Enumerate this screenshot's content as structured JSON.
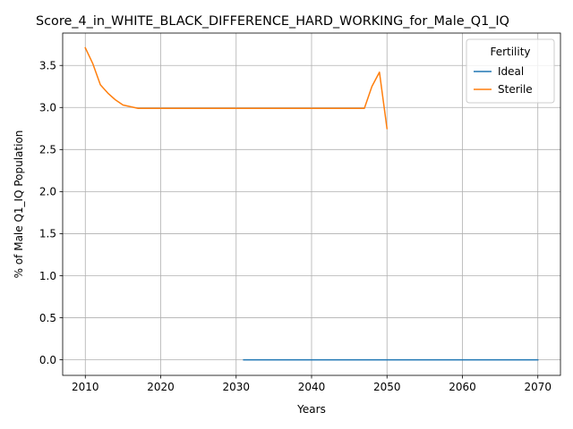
{
  "chart_data": {
    "type": "line",
    "title": "Score_4_in_WHITE_BLACK_DIFFERENCE_HARD_WORKING_for_Male_Q1_IQ",
    "xlabel": "Years",
    "ylabel": "% of Male Q1_IQ Population",
    "xlim": [
      2007,
      2073
    ],
    "ylim": [
      -0.185,
      3.885
    ],
    "xticks": [
      2010,
      2020,
      2030,
      2040,
      2050,
      2060,
      2070
    ],
    "yticks": [
      0.0,
      0.5,
      1.0,
      1.5,
      2.0,
      2.5,
      3.0,
      3.5
    ],
    "xtick_labels": [
      "2010",
      "2020",
      "2030",
      "2040",
      "2050",
      "2060",
      "2070"
    ],
    "ytick_labels": [
      "0.0",
      "0.5",
      "1.0",
      "1.5",
      "2.0",
      "2.5",
      "3.0",
      "3.5"
    ],
    "grid": true,
    "legend": {
      "title": "Fertility",
      "placement": "top-right"
    },
    "series": [
      {
        "name": "Ideal",
        "color": "#1f77b4",
        "x": [
          2031,
          2035,
          2040,
          2045,
          2050,
          2055,
          2060,
          2065,
          2070
        ],
        "y": [
          0.0,
          0.0,
          0.0,
          0.0,
          0.0,
          0.0,
          0.0,
          0.0,
          0.0
        ]
      },
      {
        "name": "Sterile",
        "color": "#ff7f0e",
        "x": [
          2010,
          2011,
          2012,
          2013,
          2014,
          2015,
          2016,
          2017,
          2018,
          2020,
          2025,
          2030,
          2035,
          2040,
          2045,
          2047,
          2048,
          2049,
          2050
        ],
        "y": [
          3.71,
          3.52,
          3.27,
          3.17,
          3.09,
          3.03,
          3.01,
          2.99,
          2.99,
          2.99,
          2.99,
          2.99,
          2.99,
          2.99,
          2.99,
          2.99,
          3.25,
          3.42,
          2.75
        ]
      }
    ]
  }
}
